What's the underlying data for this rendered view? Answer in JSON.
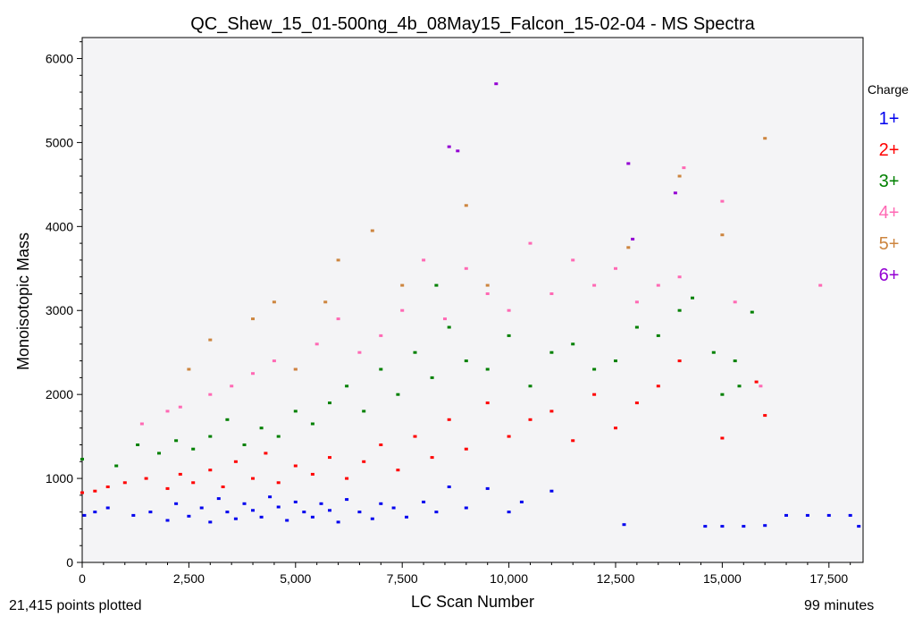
{
  "chart_data": {
    "type": "scatter",
    "title": "QC_Shew_15_01-500ng_4b_08May15_Falcon_15-02-04 - MS Spectra",
    "xlabel": "LC Scan Number",
    "ylabel": "Monoisotopic Mass",
    "xlim": [
      0,
      18300
    ],
    "ylim": [
      0,
      6250
    ],
    "x_ticks": [
      0,
      2500,
      5000,
      7500,
      10000,
      12500,
      15000,
      17500
    ],
    "x_tick_labels": [
      "0",
      "2,500",
      "5,000",
      "7,500",
      "10,000",
      "12,500",
      "15,000",
      "17,500"
    ],
    "y_ticks": [
      0,
      1000,
      2000,
      3000,
      4000,
      5000,
      6000
    ],
    "y_tick_labels": [
      "0",
      "1000",
      "2000",
      "3000",
      "4000",
      "5000",
      "6000"
    ],
    "grid": false,
    "plot_background": "#f4f4f6",
    "legend": {
      "title": "Charge",
      "placement": "right",
      "entries": [
        "1+",
        "2+",
        "3+",
        "4+",
        "5+",
        "6+"
      ]
    },
    "series": [
      {
        "name": "1+",
        "color": "#0000ee",
        "points": [
          [
            50,
            560
          ],
          [
            300,
            600
          ],
          [
            600,
            650
          ],
          [
            1200,
            560
          ],
          [
            1600,
            600
          ],
          [
            2000,
            500
          ],
          [
            2200,
            700
          ],
          [
            2500,
            550
          ],
          [
            2800,
            650
          ],
          [
            3000,
            480
          ],
          [
            3200,
            760
          ],
          [
            3400,
            600
          ],
          [
            3600,
            520
          ],
          [
            3800,
            700
          ],
          [
            4000,
            620
          ],
          [
            4200,
            540
          ],
          [
            4400,
            780
          ],
          [
            4600,
            660
          ],
          [
            4800,
            500
          ],
          [
            5000,
            720
          ],
          [
            5200,
            600
          ],
          [
            5400,
            540
          ],
          [
            5600,
            700
          ],
          [
            5800,
            620
          ],
          [
            6000,
            480
          ],
          [
            6200,
            750
          ],
          [
            6500,
            600
          ],
          [
            6800,
            520
          ],
          [
            7000,
            700
          ],
          [
            7300,
            650
          ],
          [
            7600,
            540
          ],
          [
            8000,
            720
          ],
          [
            8300,
            600
          ],
          [
            8600,
            900
          ],
          [
            9000,
            650
          ],
          [
            9500,
            880
          ],
          [
            10000,
            600
          ],
          [
            10300,
            720
          ],
          [
            11000,
            850
          ],
          [
            12700,
            450
          ],
          [
            14600,
            430
          ],
          [
            15000,
            430
          ],
          [
            15500,
            430
          ],
          [
            16000,
            440
          ],
          [
            16500,
            560
          ],
          [
            17000,
            560
          ],
          [
            17500,
            560
          ],
          [
            18000,
            560
          ],
          [
            18200,
            430
          ]
        ]
      },
      {
        "name": "2+",
        "color": "#ff0000",
        "points": [
          [
            0,
            830
          ],
          [
            300,
            850
          ],
          [
            600,
            900
          ],
          [
            1000,
            950
          ],
          [
            1500,
            1000
          ],
          [
            2000,
            880
          ],
          [
            2300,
            1050
          ],
          [
            2600,
            950
          ],
          [
            3000,
            1100
          ],
          [
            3300,
            900
          ],
          [
            3600,
            1200
          ],
          [
            4000,
            1000
          ],
          [
            4300,
            1300
          ],
          [
            4600,
            950
          ],
          [
            5000,
            1150
          ],
          [
            5400,
            1050
          ],
          [
            5800,
            1250
          ],
          [
            6200,
            1000
          ],
          [
            6600,
            1200
          ],
          [
            7000,
            1400
          ],
          [
            7400,
            1100
          ],
          [
            7800,
            1500
          ],
          [
            8200,
            1250
          ],
          [
            8600,
            1700
          ],
          [
            9000,
            1350
          ],
          [
            9500,
            1900
          ],
          [
            10000,
            1500
          ],
          [
            10500,
            1700
          ],
          [
            11000,
            1800
          ],
          [
            11500,
            1450
          ],
          [
            12000,
            2000
          ],
          [
            12500,
            1600
          ],
          [
            13000,
            1900
          ],
          [
            13500,
            2100
          ],
          [
            14000,
            2400
          ],
          [
            15000,
            1480
          ],
          [
            15800,
            2150
          ],
          [
            16000,
            1750
          ]
        ]
      },
      {
        "name": "3+",
        "color": "#008000",
        "points": [
          [
            0,
            1230
          ],
          [
            800,
            1150
          ],
          [
            1300,
            1400
          ],
          [
            1800,
            1300
          ],
          [
            2200,
            1450
          ],
          [
            2600,
            1350
          ],
          [
            3000,
            1500
          ],
          [
            3400,
            1700
          ],
          [
            3800,
            1400
          ],
          [
            4200,
            1600
          ],
          [
            4600,
            1500
          ],
          [
            5000,
            1800
          ],
          [
            5400,
            1650
          ],
          [
            5800,
            1900
          ],
          [
            6200,
            2100
          ],
          [
            6600,
            1800
          ],
          [
            7000,
            2300
          ],
          [
            7400,
            2000
          ],
          [
            7800,
            2500
          ],
          [
            8200,
            2200
          ],
          [
            8600,
            2800
          ],
          [
            9000,
            2400
          ],
          [
            9500,
            2300
          ],
          [
            10000,
            2700
          ],
          [
            10500,
            2100
          ],
          [
            11000,
            2500
          ],
          [
            11500,
            2600
          ],
          [
            12000,
            2300
          ],
          [
            12500,
            2400
          ],
          [
            13000,
            2800
          ],
          [
            13500,
            2700
          ],
          [
            14000,
            3000
          ],
          [
            14300,
            3150
          ],
          [
            14800,
            2500
          ],
          [
            15000,
            2000
          ],
          [
            15300,
            2400
          ],
          [
            15700,
            2980
          ],
          [
            15400,
            2100
          ],
          [
            8300,
            3300
          ]
        ]
      },
      {
        "name": "4+",
        "color": "#ff69b4",
        "points": [
          [
            1400,
            1650
          ],
          [
            2000,
            1800
          ],
          [
            2300,
            1850
          ],
          [
            3000,
            2000
          ],
          [
            3500,
            2100
          ],
          [
            4000,
            2250
          ],
          [
            4500,
            2400
          ],
          [
            5000,
            2300
          ],
          [
            5500,
            2600
          ],
          [
            6000,
            2900
          ],
          [
            6500,
            2500
          ],
          [
            7000,
            2700
          ],
          [
            7500,
            3000
          ],
          [
            8000,
            3600
          ],
          [
            8500,
            2900
          ],
          [
            9000,
            3500
          ],
          [
            9500,
            3200
          ],
          [
            10000,
            3000
          ],
          [
            10500,
            3800
          ],
          [
            11000,
            3200
          ],
          [
            11500,
            3600
          ],
          [
            12000,
            3300
          ],
          [
            12500,
            3500
          ],
          [
            13000,
            3100
          ],
          [
            13500,
            3300
          ],
          [
            14000,
            3400
          ],
          [
            14100,
            4700
          ],
          [
            15000,
            4300
          ],
          [
            15300,
            3100
          ],
          [
            15900,
            2100
          ],
          [
            17300,
            3300
          ]
        ]
      },
      {
        "name": "5+",
        "color": "#cd853f",
        "points": [
          [
            2500,
            2300
          ],
          [
            3000,
            2650
          ],
          [
            4000,
            2900
          ],
          [
            4500,
            3100
          ],
          [
            5000,
            2300
          ],
          [
            5700,
            3100
          ],
          [
            6000,
            3600
          ],
          [
            6800,
            3950
          ],
          [
            7500,
            3300
          ],
          [
            9000,
            4250
          ],
          [
            9500,
            3300
          ],
          [
            12800,
            3750
          ],
          [
            14000,
            4600
          ],
          [
            15000,
            3900
          ],
          [
            16000,
            5050
          ]
        ]
      },
      {
        "name": "6+",
        "color": "#9400d3",
        "points": [
          [
            8600,
            4950
          ],
          [
            8800,
            4900
          ],
          [
            9700,
            5700
          ],
          [
            12800,
            4750
          ],
          [
            12900,
            3850
          ],
          [
            13900,
            4400
          ]
        ]
      }
    ],
    "footer_left": "21,415 points plotted",
    "footer_right": "99 minutes"
  }
}
